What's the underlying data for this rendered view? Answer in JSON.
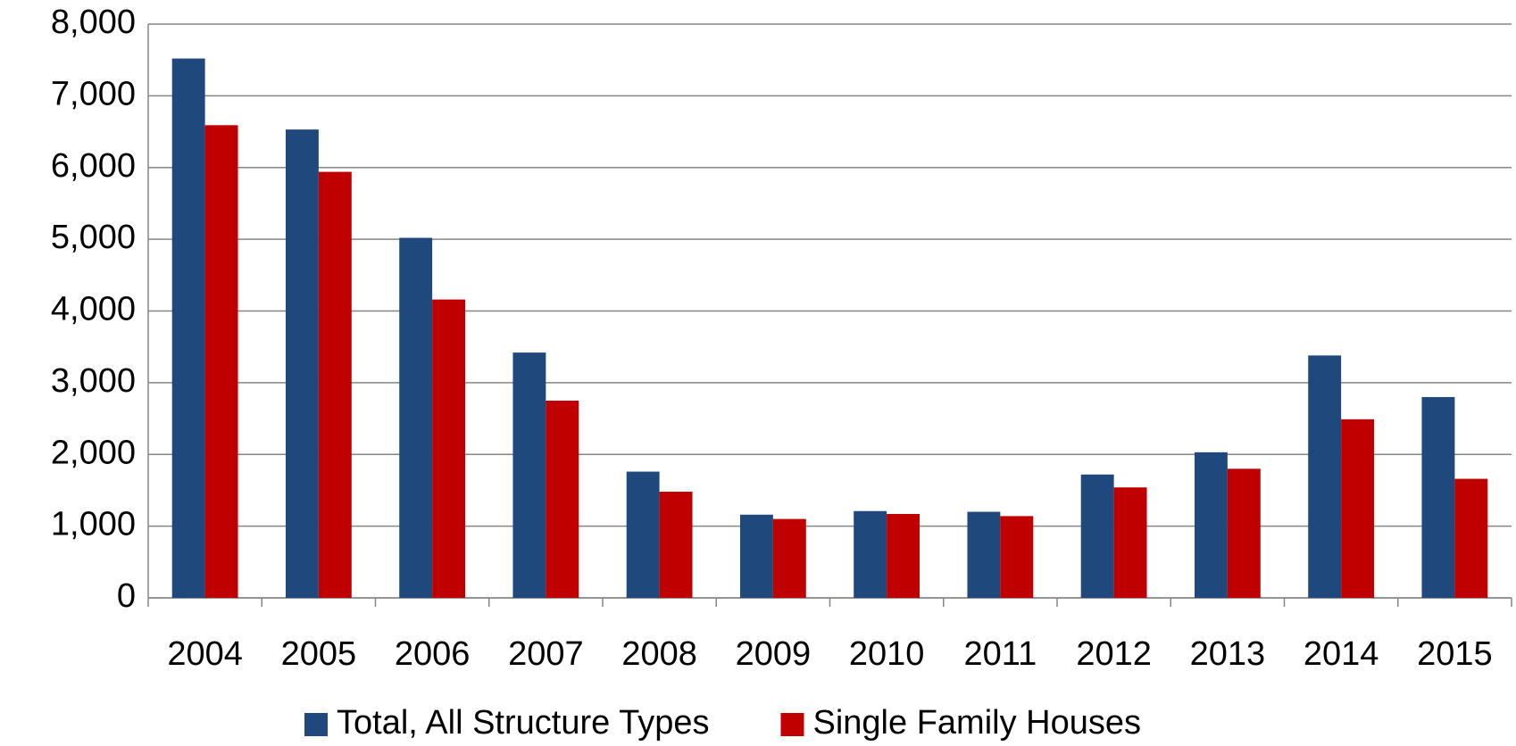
{
  "chart_data": {
    "type": "bar",
    "categories": [
      "2004",
      "2005",
      "2006",
      "2007",
      "2008",
      "2009",
      "2010",
      "2011",
      "2012",
      "2013",
      "2014",
      "2015"
    ],
    "series": [
      {
        "name": "Total, All Structure Types",
        "color": "#1f497d",
        "values": [
          7520,
          6530,
          5020,
          3420,
          1760,
          1160,
          1210,
          1200,
          1720,
          2030,
          3380,
          2800
        ]
      },
      {
        "name": "Single Family Houses",
        "color": "#c00000",
        "values": [
          6590,
          5940,
          4160,
          2750,
          1480,
          1100,
          1170,
          1140,
          1540,
          1800,
          2490,
          1660
        ]
      }
    ],
    "ylim": [
      0,
      8000
    ],
    "yticks": [
      0,
      {
        "value": 1000,
        "label": "1,000"
      },
      {
        "value": 2000,
        "label": "2,000"
      },
      {
        "value": 3000,
        "label": "3,000"
      },
      {
        "value": 4000,
        "label": "4,000"
      },
      {
        "value": 5000,
        "label": "5,000"
      },
      {
        "value": 6000,
        "label": "6,000"
      },
      {
        "value": 7000,
        "label": "7,000"
      },
      {
        "value": 8000,
        "label": "8,000"
      }
    ],
    "grid": true,
    "legend": "bottom"
  }
}
